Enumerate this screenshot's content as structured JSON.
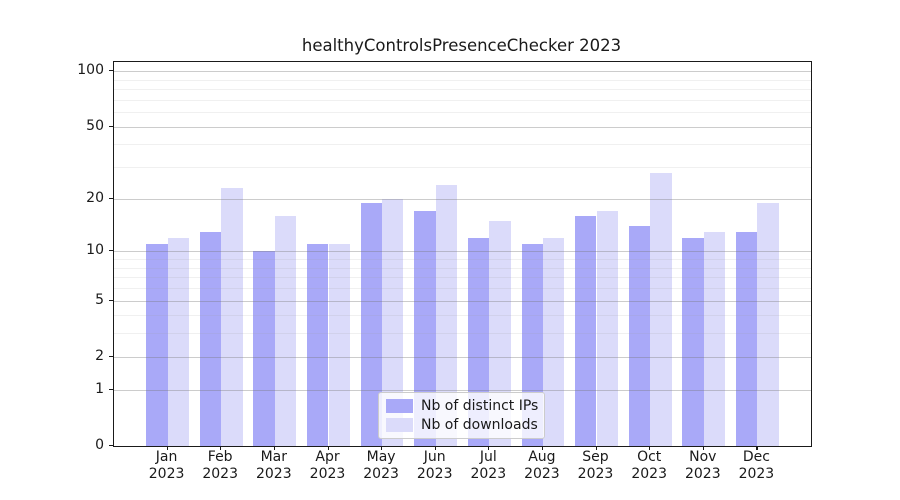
{
  "chart_data": {
    "type": "bar",
    "title": "healthyControlsPresenceChecker 2023",
    "categories": [
      "Jan\n2023",
      "Feb\n2023",
      "Mar\n2023",
      "Apr\n2023",
      "May\n2023",
      "Jun\n2023",
      "Jul\n2023",
      "Aug\n2023",
      "Sep\n2023",
      "Oct\n2023",
      "Nov\n2023",
      "Dec\n2023"
    ],
    "series": [
      {
        "name": "Nb of distinct IPs",
        "color": "#a9a9f8",
        "values": [
          11,
          13,
          10,
          11,
          19,
          17,
          12,
          11,
          16,
          14,
          12,
          13
        ]
      },
      {
        "name": "Nb of downloads",
        "color": "#dbdbfa",
        "values": [
          12,
          23,
          16,
          11,
          20,
          24,
          15,
          12,
          17,
          28,
          13,
          19
        ]
      }
    ],
    "yscale": "log1p",
    "ylim": [
      0,
      112
    ],
    "yticks": [
      0,
      1,
      2,
      5,
      10,
      20,
      50,
      100
    ],
    "minor_yticks": [
      3,
      4,
      6,
      7,
      8,
      9,
      30,
      40,
      60,
      70,
      80,
      90
    ],
    "grid": true,
    "grid_above_bars": true,
    "legend_position": "lower center",
    "xlabel": "",
    "ylabel": ""
  }
}
